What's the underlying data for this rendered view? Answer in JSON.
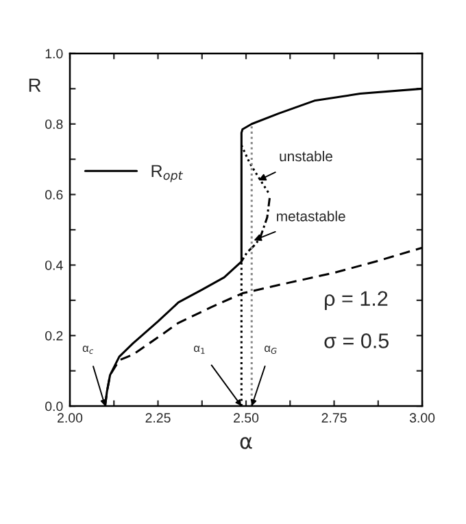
{
  "chart_data": {
    "type": "line",
    "xlabel": "α",
    "ylabel": "R",
    "xlim": [
      2.0,
      3.0
    ],
    "ylim": [
      0.0,
      1.0
    ],
    "xticks": [
      {
        "value": 2.0,
        "label": "2.00"
      },
      {
        "value": 2.125,
        "label": null
      },
      {
        "value": 2.25,
        "label": "2.25"
      },
      {
        "value": 2.375,
        "label": null
      },
      {
        "value": 2.5,
        "label": "2.50"
      },
      {
        "value": 2.625,
        "label": null
      },
      {
        "value": 2.75,
        "label": "2.75"
      },
      {
        "value": 2.875,
        "label": null
      },
      {
        "value": 3.0,
        "label": "3.00"
      }
    ],
    "yticks": [
      {
        "value": 0,
        "label": "0.0"
      },
      {
        "value": 0.1,
        "label": null
      },
      0.2,
      {
        "value": 0.3,
        "label": null
      },
      0.4,
      {
        "value": 0.5,
        "label": null
      },
      0.6,
      {
        "value": 0.7,
        "label": null
      },
      0.8,
      {
        "value": 0.9,
        "label": null
      },
      {
        "value": 1,
        "label": "1.0"
      }
    ],
    "grid": false,
    "legend": "left",
    "marker": "none",
    "series": [
      {
        "name": "R$_{opt}$",
        "color": "#000000",
        "line_style": "solid",
        "x": [
          2.1,
          2.105,
          2.114,
          2.14,
          2.179,
          2.25,
          2.308,
          2.375,
          2.438,
          2.487,
          2.487,
          2.49,
          2.516,
          2.593,
          2.694,
          2.824,
          3.0
        ],
        "values": [
          0.0,
          0.04,
          0.088,
          0.14,
          0.178,
          0.24,
          0.294,
          0.33,
          0.365,
          0.41,
          0.775,
          0.785,
          0.8,
          0.83,
          0.866,
          0.886,
          0.9
        ]
      },
      {
        "color": "#000000",
        "line_style": "dashed",
        "x": [
          2.1,
          2.105,
          2.114,
          2.14,
          2.179,
          2.25,
          2.308,
          2.4,
          2.49,
          2.6,
          2.75,
          2.875,
          3.0
        ],
        "values": [
          0.0,
          0.04,
          0.088,
          0.13,
          0.146,
          0.195,
          0.236,
          0.28,
          0.32,
          0.345,
          0.378,
          0.412,
          0.449
        ]
      },
      {
        "color": "#000000",
        "line_style": "dotted",
        "x": [
          2.487,
          2.51,
          2.541,
          2.567
        ],
        "values": [
          0.74,
          0.69,
          0.64,
          0.6
        ]
      },
      {
        "color": "#000000",
        "line_style": "dashdot",
        "x": [
          2.567,
          2.56,
          2.541,
          2.528,
          2.503,
          2.487
        ],
        "values": [
          0.59,
          0.535,
          0.48,
          0.46,
          0.436,
          0.41
        ]
      },
      {
        "color": "#000000",
        "line_style": "dotted",
        "x": [
          2.487,
          2.487
        ],
        "values": [
          0.0,
          0.41
        ]
      },
      {
        "color": "#888888",
        "line_style": "dotted",
        "x": [
          2.516,
          2.516
        ],
        "values": [
          0.0,
          0.8
        ]
      }
    ],
    "annotations": [
      {
        "text": "unstable",
        "x": 2.535,
        "y": 0.64
      },
      {
        "text": "metastable",
        "x": 2.522,
        "y": 0.47
      },
      {
        "text": "α$_{c}$",
        "x": 2.1,
        "y": 0.0
      },
      {
        "text": "α$_{1}$",
        "x": 2.487,
        "y": 0.0
      },
      {
        "text": "α$_{G}$",
        "x": 2.516,
        "y": 0.0
      },
      "ρ = 1.2",
      "σ = 0.5"
    ]
  }
}
